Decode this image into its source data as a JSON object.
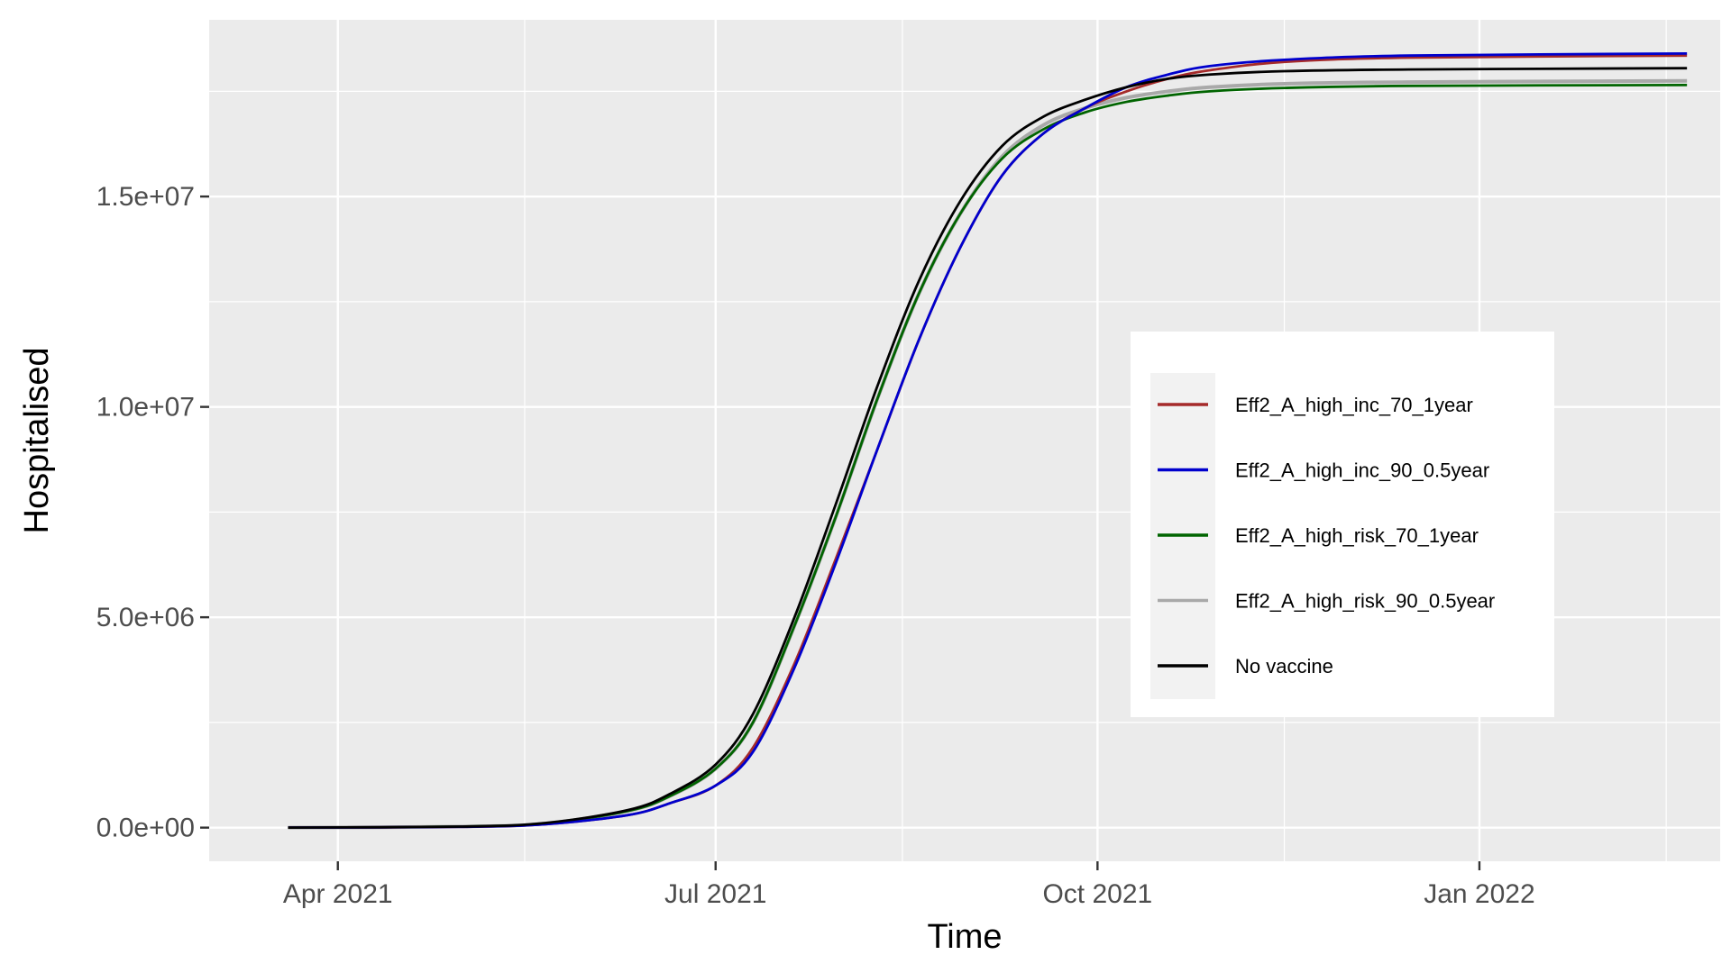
{
  "chart_data": {
    "type": "line",
    "xlabel": "Time",
    "ylabel": "Hospitalised",
    "x_range": [
      "2021-03-01",
      "2022-02-28"
    ],
    "ylim": [
      -800000,
      19200000
    ],
    "x_ticks": [
      {
        "date": "2021-04-01",
        "label": "Apr 2021"
      },
      {
        "date": "2021-07-01",
        "label": "Jul 2021"
      },
      {
        "date": "2021-10-01",
        "label": "Oct 2021"
      },
      {
        "date": "2022-01-01",
        "label": "Jan 2022"
      }
    ],
    "x_minor_ticks": [
      "2021-02-15",
      "2021-05-16",
      "2021-08-15",
      "2021-11-15",
      "2022-02-15"
    ],
    "y_ticks": [
      {
        "value": 0,
        "label": "0.0e+00"
      },
      {
        "value": 5000000,
        "label": "5.0e+06"
      },
      {
        "value": 10000000,
        "label": "1.0e+07"
      },
      {
        "value": 15000000,
        "label": "1.5e+07"
      }
    ],
    "y_minor_ticks": [
      2500000,
      7500000,
      12500000,
      17500000
    ],
    "grid": true,
    "legend_position": "right, inside plot",
    "series": [
      {
        "name": "Eff2_A_high_inc_70_1year",
        "color": "#a52a2a",
        "points": [
          [
            "2021-03-20",
            0
          ],
          [
            "2021-05-01",
            20000
          ],
          [
            "2021-05-21",
            80000
          ],
          [
            "2021-06-10",
            300000
          ],
          [
            "2021-06-20",
            580000
          ],
          [
            "2021-07-01",
            1000000
          ],
          [
            "2021-07-10",
            1900000
          ],
          [
            "2021-07-20",
            3900000
          ],
          [
            "2021-07-30",
            6400000
          ],
          [
            "2021-08-09",
            9000000
          ],
          [
            "2021-08-19",
            11600000
          ],
          [
            "2021-08-29",
            13800000
          ],
          [
            "2021-09-08",
            15500000
          ],
          [
            "2021-09-18",
            16500000
          ],
          [
            "2021-09-28",
            17100000
          ],
          [
            "2021-10-08",
            17500000
          ],
          [
            "2021-10-18",
            17800000
          ],
          [
            "2021-10-28",
            18000000
          ],
          [
            "2021-11-15",
            18200000
          ],
          [
            "2021-12-15",
            18300000
          ],
          [
            "2022-02-20",
            18350000
          ]
        ]
      },
      {
        "name": "Eff2_A_high_inc_90_0.5year",
        "color": "#0000cd",
        "points": [
          [
            "2021-03-20",
            0
          ],
          [
            "2021-05-01",
            20000
          ],
          [
            "2021-05-21",
            80000
          ],
          [
            "2021-06-10",
            300000
          ],
          [
            "2021-06-20",
            580000
          ],
          [
            "2021-07-01",
            1000000
          ],
          [
            "2021-07-10",
            1800000
          ],
          [
            "2021-07-20",
            3800000
          ],
          [
            "2021-07-30",
            6300000
          ],
          [
            "2021-08-09",
            9000000
          ],
          [
            "2021-08-19",
            11600000
          ],
          [
            "2021-08-29",
            13800000
          ],
          [
            "2021-09-08",
            15500000
          ],
          [
            "2021-09-18",
            16500000
          ],
          [
            "2021-09-28",
            17100000
          ],
          [
            "2021-10-08",
            17600000
          ],
          [
            "2021-10-18",
            17900000
          ],
          [
            "2021-10-28",
            18100000
          ],
          [
            "2021-11-15",
            18250000
          ],
          [
            "2021-12-15",
            18350000
          ],
          [
            "2022-02-20",
            18400000
          ]
        ]
      },
      {
        "name": "Eff2_A_high_risk_70_1year",
        "color": "#006400",
        "points": [
          [
            "2021-03-20",
            0
          ],
          [
            "2021-05-01",
            25000
          ],
          [
            "2021-05-21",
            100000
          ],
          [
            "2021-06-10",
            400000
          ],
          [
            "2021-06-20",
            750000
          ],
          [
            "2021-07-01",
            1400000
          ],
          [
            "2021-07-10",
            2500000
          ],
          [
            "2021-07-20",
            4800000
          ],
          [
            "2021-07-30",
            7400000
          ],
          [
            "2021-08-09",
            10200000
          ],
          [
            "2021-08-19",
            12700000
          ],
          [
            "2021-08-29",
            14600000
          ],
          [
            "2021-09-08",
            15900000
          ],
          [
            "2021-09-18",
            16600000
          ],
          [
            "2021-09-28",
            17000000
          ],
          [
            "2021-10-08",
            17250000
          ],
          [
            "2021-10-18",
            17400000
          ],
          [
            "2021-10-28",
            17500000
          ],
          [
            "2021-11-15",
            17580000
          ],
          [
            "2021-12-15",
            17630000
          ],
          [
            "2022-02-20",
            17650000
          ]
        ]
      },
      {
        "name": "Eff2_A_high_risk_90_0.5year",
        "color": "#a9a9a9",
        "points": [
          [
            "2021-03-20",
            0
          ],
          [
            "2021-05-01",
            25000
          ],
          [
            "2021-05-21",
            100000
          ],
          [
            "2021-06-10",
            400000
          ],
          [
            "2021-06-20",
            750000
          ],
          [
            "2021-07-01",
            1400000
          ],
          [
            "2021-07-10",
            2500000
          ],
          [
            "2021-07-20",
            4800000
          ],
          [
            "2021-07-30",
            7400000
          ],
          [
            "2021-08-09",
            10200000
          ],
          [
            "2021-08-19",
            12700000
          ],
          [
            "2021-08-29",
            14600000
          ],
          [
            "2021-09-08",
            15950000
          ],
          [
            "2021-09-18",
            16700000
          ],
          [
            "2021-09-28",
            17100000
          ],
          [
            "2021-10-08",
            17350000
          ],
          [
            "2021-10-18",
            17500000
          ],
          [
            "2021-10-28",
            17600000
          ],
          [
            "2021-11-15",
            17680000
          ],
          [
            "2021-12-15",
            17720000
          ],
          [
            "2022-02-20",
            17750000
          ]
        ]
      },
      {
        "name": "No vaccine",
        "color": "#000000",
        "points": [
          [
            "2021-03-20",
            0
          ],
          [
            "2021-05-01",
            25000
          ],
          [
            "2021-05-21",
            110000
          ],
          [
            "2021-06-10",
            420000
          ],
          [
            "2021-06-20",
            800000
          ],
          [
            "2021-07-01",
            1500000
          ],
          [
            "2021-07-10",
            2700000
          ],
          [
            "2021-07-20",
            5000000
          ],
          [
            "2021-07-30",
            7700000
          ],
          [
            "2021-08-09",
            10500000
          ],
          [
            "2021-08-19",
            13000000
          ],
          [
            "2021-08-29",
            14900000
          ],
          [
            "2021-09-08",
            16200000
          ],
          [
            "2021-09-18",
            16900000
          ],
          [
            "2021-09-28",
            17300000
          ],
          [
            "2021-10-08",
            17600000
          ],
          [
            "2021-10-18",
            17800000
          ],
          [
            "2021-10-28",
            17900000
          ],
          [
            "2021-11-15",
            17980000
          ],
          [
            "2021-12-15",
            18020000
          ],
          [
            "2022-02-20",
            18050000
          ]
        ]
      }
    ]
  }
}
